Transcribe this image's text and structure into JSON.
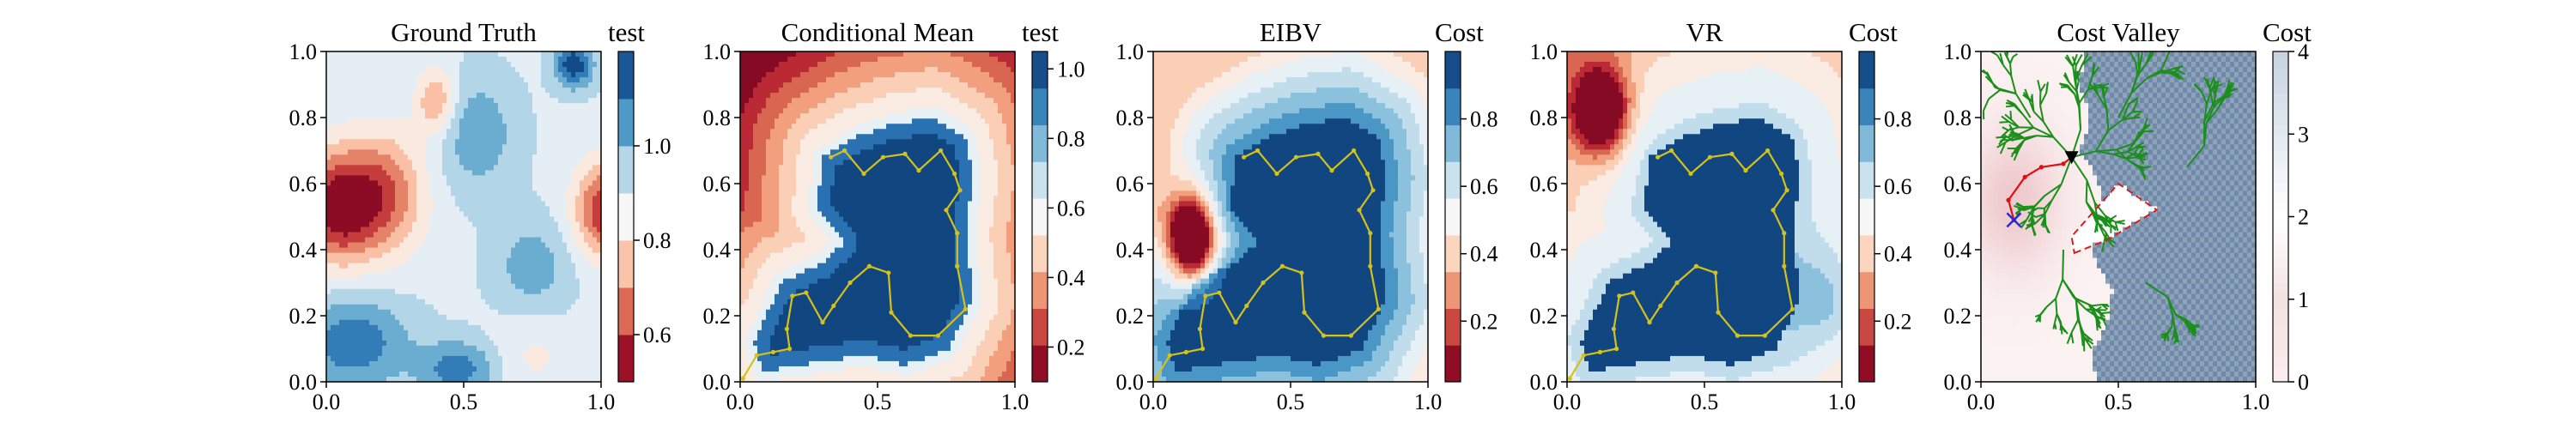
{
  "chart_data": [
    {
      "type": "heatmap",
      "title": "Ground Truth",
      "xlabel": "",
      "ylabel": "",
      "xlim": [
        0.0,
        1.0
      ],
      "ylim": [
        0.0,
        1.0
      ],
      "x_ticks": [
        "0.0",
        "0.5",
        "1.0"
      ],
      "y_ticks": [
        "0.0",
        "0.2",
        "0.4",
        "0.6",
        "0.8",
        "1.0"
      ],
      "colorbar": {
        "title": "test",
        "range": [
          0.5,
          1.2
        ],
        "ticks": [
          {
            "v": 0.6,
            "label": "0.6"
          },
          {
            "v": 0.8,
            "label": "0.8"
          },
          {
            "v": 1.0,
            "label": "1.0"
          }
        ],
        "colormap": "RdBu"
      },
      "features": [
        {
          "x": 0.05,
          "y": 0.53,
          "value": 0.52,
          "sx": 0.1,
          "sy": 0.12
        },
        {
          "x": 1.0,
          "y": 0.52,
          "value": 0.55,
          "sx": 0.09,
          "sy": 0.1
        },
        {
          "x": 0.88,
          "y": 0.95,
          "value": 1.18,
          "sx": 0.05,
          "sy": 0.04
        },
        {
          "x": 0.08,
          "y": 0.14,
          "value": 1.1,
          "sx": 0.16,
          "sy": 0.1
        },
        {
          "x": 0.45,
          "y": 0.05,
          "value": 1.12,
          "sx": 0.1,
          "sy": 0.05
        },
        {
          "x": 0.55,
          "y": 0.76,
          "value": 1.02,
          "sx": 0.1,
          "sy": 0.12
        }
      ],
      "base_value": 0.9
    },
    {
      "type": "heatmap",
      "title": "Conditional Mean",
      "xlabel": "",
      "ylabel": "",
      "xlim": [
        0.0,
        1.0
      ],
      "ylim": [
        0.0,
        1.0
      ],
      "x_ticks": [
        "0.0",
        "0.5",
        "1.0"
      ],
      "y_ticks": [
        "0.0",
        "0.2",
        "0.4",
        "0.6",
        "0.8",
        "1.0"
      ],
      "colorbar": {
        "title": "test",
        "range": [
          0.1,
          1.05
        ],
        "ticks": [
          {
            "v": 0.2,
            "label": "0.2"
          },
          {
            "v": 0.4,
            "label": "0.4"
          },
          {
            "v": 0.6,
            "label": "0.6"
          },
          {
            "v": 0.8,
            "label": "0.8"
          },
          {
            "v": 1.0,
            "label": "1.0"
          }
        ],
        "colormap": "RdBu"
      },
      "blob": {
        "center": [
          0.52,
          0.42
        ],
        "value_in": 1.0,
        "value_out": 0.15
      },
      "path": [
        [
          0.33,
          0.68
        ],
        [
          0.38,
          0.7
        ],
        [
          0.45,
          0.63
        ],
        [
          0.52,
          0.68
        ],
        [
          0.6,
          0.69
        ],
        [
          0.65,
          0.64
        ],
        [
          0.73,
          0.7
        ],
        [
          0.78,
          0.63
        ],
        [
          0.8,
          0.58
        ],
        [
          0.75,
          0.52
        ],
        [
          0.79,
          0.45
        ],
        [
          0.79,
          0.35
        ],
        [
          0.82,
          0.22
        ],
        [
          0.72,
          0.14
        ],
        [
          0.62,
          0.14
        ],
        [
          0.55,
          0.21
        ],
        [
          0.54,
          0.33
        ],
        [
          0.47,
          0.35
        ],
        [
          0.4,
          0.3
        ],
        [
          0.34,
          0.23
        ],
        [
          0.3,
          0.18
        ],
        [
          0.24,
          0.27
        ],
        [
          0.19,
          0.26
        ],
        [
          0.17,
          0.16
        ],
        [
          0.18,
          0.1
        ],
        [
          0.12,
          0.09
        ],
        [
          0.06,
          0.08
        ],
        [
          0.01,
          0.01
        ]
      ],
      "path_color": "#d4c21a"
    },
    {
      "type": "heatmap",
      "title": "EIBV",
      "xlabel": "",
      "ylabel": "",
      "xlim": [
        0.0,
        1.0
      ],
      "ylim": [
        0.0,
        1.0
      ],
      "x_ticks": [
        "0.0",
        "0.5",
        "1.0"
      ],
      "y_ticks": [
        "0.0",
        "0.2",
        "0.4",
        "0.6",
        "0.8",
        "1.0"
      ],
      "colorbar": {
        "title": "Cost",
        "range": [
          0.02,
          1.0
        ],
        "ticks": [
          {
            "v": 0.2,
            "label": "0.2"
          },
          {
            "v": 0.4,
            "label": "0.4"
          },
          {
            "v": 0.6,
            "label": "0.6"
          },
          {
            "v": 0.8,
            "label": "0.8"
          }
        ],
        "colormap": "RdBu"
      },
      "blob": {
        "center": [
          0.52,
          0.42
        ],
        "value_in": 0.98,
        "value_out": 0.5
      },
      "low_spot": {
        "x": 0.14,
        "y": 0.43,
        "value": 0.05
      },
      "path": [
        [
          0.33,
          0.68
        ],
        [
          0.38,
          0.7
        ],
        [
          0.45,
          0.63
        ],
        [
          0.52,
          0.68
        ],
        [
          0.6,
          0.69
        ],
        [
          0.65,
          0.64
        ],
        [
          0.73,
          0.7
        ],
        [
          0.78,
          0.63
        ],
        [
          0.8,
          0.58
        ],
        [
          0.75,
          0.52
        ],
        [
          0.79,
          0.45
        ],
        [
          0.79,
          0.35
        ],
        [
          0.82,
          0.22
        ],
        [
          0.72,
          0.14
        ],
        [
          0.62,
          0.14
        ],
        [
          0.55,
          0.21
        ],
        [
          0.54,
          0.33
        ],
        [
          0.47,
          0.35
        ],
        [
          0.4,
          0.3
        ],
        [
          0.34,
          0.23
        ],
        [
          0.3,
          0.18
        ],
        [
          0.24,
          0.27
        ],
        [
          0.19,
          0.26
        ],
        [
          0.17,
          0.16
        ],
        [
          0.18,
          0.1
        ],
        [
          0.12,
          0.09
        ],
        [
          0.06,
          0.08
        ],
        [
          0.01,
          0.01
        ]
      ],
      "path_color": "#d4c21a"
    },
    {
      "type": "heatmap",
      "title": "VR",
      "xlabel": "",
      "ylabel": "",
      "xlim": [
        0.0,
        1.0
      ],
      "ylim": [
        0.0,
        1.0
      ],
      "x_ticks": [
        "0.0",
        "0.5",
        "1.0"
      ],
      "y_ticks": [
        "0.0",
        "0.2",
        "0.4",
        "0.6",
        "0.8",
        "1.0"
      ],
      "colorbar": {
        "title": "Cost",
        "range": [
          0.02,
          1.0
        ],
        "ticks": [
          {
            "v": 0.2,
            "label": "0.2"
          },
          {
            "v": 0.4,
            "label": "0.4"
          },
          {
            "v": 0.6,
            "label": "0.6"
          },
          {
            "v": 0.8,
            "label": "0.8"
          }
        ],
        "colormap": "RdBu"
      },
      "blob": {
        "center": [
          0.52,
          0.42
        ],
        "value_in": 0.98,
        "value_out": 0.45
      },
      "low_spot": {
        "x": 0.12,
        "y": 0.82,
        "value": 0.05
      },
      "path": [
        [
          0.33,
          0.68
        ],
        [
          0.38,
          0.7
        ],
        [
          0.45,
          0.63
        ],
        [
          0.52,
          0.68
        ],
        [
          0.6,
          0.69
        ],
        [
          0.65,
          0.64
        ],
        [
          0.73,
          0.7
        ],
        [
          0.78,
          0.63
        ],
        [
          0.8,
          0.58
        ],
        [
          0.75,
          0.52
        ],
        [
          0.79,
          0.45
        ],
        [
          0.79,
          0.35
        ],
        [
          0.82,
          0.22
        ],
        [
          0.72,
          0.14
        ],
        [
          0.62,
          0.14
        ],
        [
          0.55,
          0.21
        ],
        [
          0.54,
          0.33
        ],
        [
          0.47,
          0.35
        ],
        [
          0.4,
          0.3
        ],
        [
          0.34,
          0.23
        ],
        [
          0.3,
          0.18
        ],
        [
          0.24,
          0.27
        ],
        [
          0.19,
          0.26
        ],
        [
          0.17,
          0.16
        ],
        [
          0.18,
          0.1
        ],
        [
          0.12,
          0.09
        ],
        [
          0.06,
          0.08
        ],
        [
          0.01,
          0.01
        ]
      ],
      "path_color": "#d4c21a"
    },
    {
      "type": "heatmap",
      "title": "Cost Valley",
      "xlabel": "",
      "ylabel": "",
      "xlim": [
        0.0,
        1.0
      ],
      "ylim": [
        0.0,
        1.0
      ],
      "x_ticks": [
        "0.0",
        "0.5",
        "1.0"
      ],
      "y_ticks": [
        "0.0",
        "0.2",
        "0.4",
        "0.6",
        "0.8",
        "1.0"
      ],
      "colorbar": {
        "title": "Cost",
        "range": [
          0,
          4
        ],
        "ticks": [
          {
            "v": 0,
            "label": "0"
          },
          {
            "v": 1,
            "label": "1"
          },
          {
            "v": 2,
            "label": "2"
          },
          {
            "v": 3,
            "label": "3"
          },
          {
            "v": 4,
            "label": "4"
          }
        ],
        "colormap": "PuBu_light"
      },
      "valley_boundary": [
        [
          0.38,
          1.0
        ],
        [
          0.36,
          0.9
        ],
        [
          0.4,
          0.8
        ],
        [
          0.36,
          0.7
        ],
        [
          0.42,
          0.62
        ],
        [
          0.44,
          0.55
        ],
        [
          0.4,
          0.45
        ],
        [
          0.42,
          0.35
        ],
        [
          0.48,
          0.28
        ],
        [
          0.46,
          0.18
        ],
        [
          0.4,
          0.08
        ],
        [
          0.42,
          0.0
        ]
      ],
      "polygon": [
        [
          0.34,
          0.39
        ],
        [
          0.46,
          0.43
        ],
        [
          0.64,
          0.52
        ],
        [
          0.5,
          0.6
        ],
        [
          0.33,
          0.44
        ]
      ],
      "tree_color": "#1a8f1a",
      "red_path": [
        [
          0.12,
          0.49
        ],
        [
          0.1,
          0.55
        ],
        [
          0.16,
          0.62
        ],
        [
          0.22,
          0.65
        ],
        [
          0.3,
          0.66
        ],
        [
          0.33,
          0.68
        ]
      ],
      "start_marker": {
        "x": 0.12,
        "y": 0.49,
        "shape": "x",
        "color": "#2a2ad0"
      },
      "end_marker": {
        "x": 0.33,
        "y": 0.68,
        "shape": "triangle-down",
        "color": "#000000"
      }
    }
  ]
}
